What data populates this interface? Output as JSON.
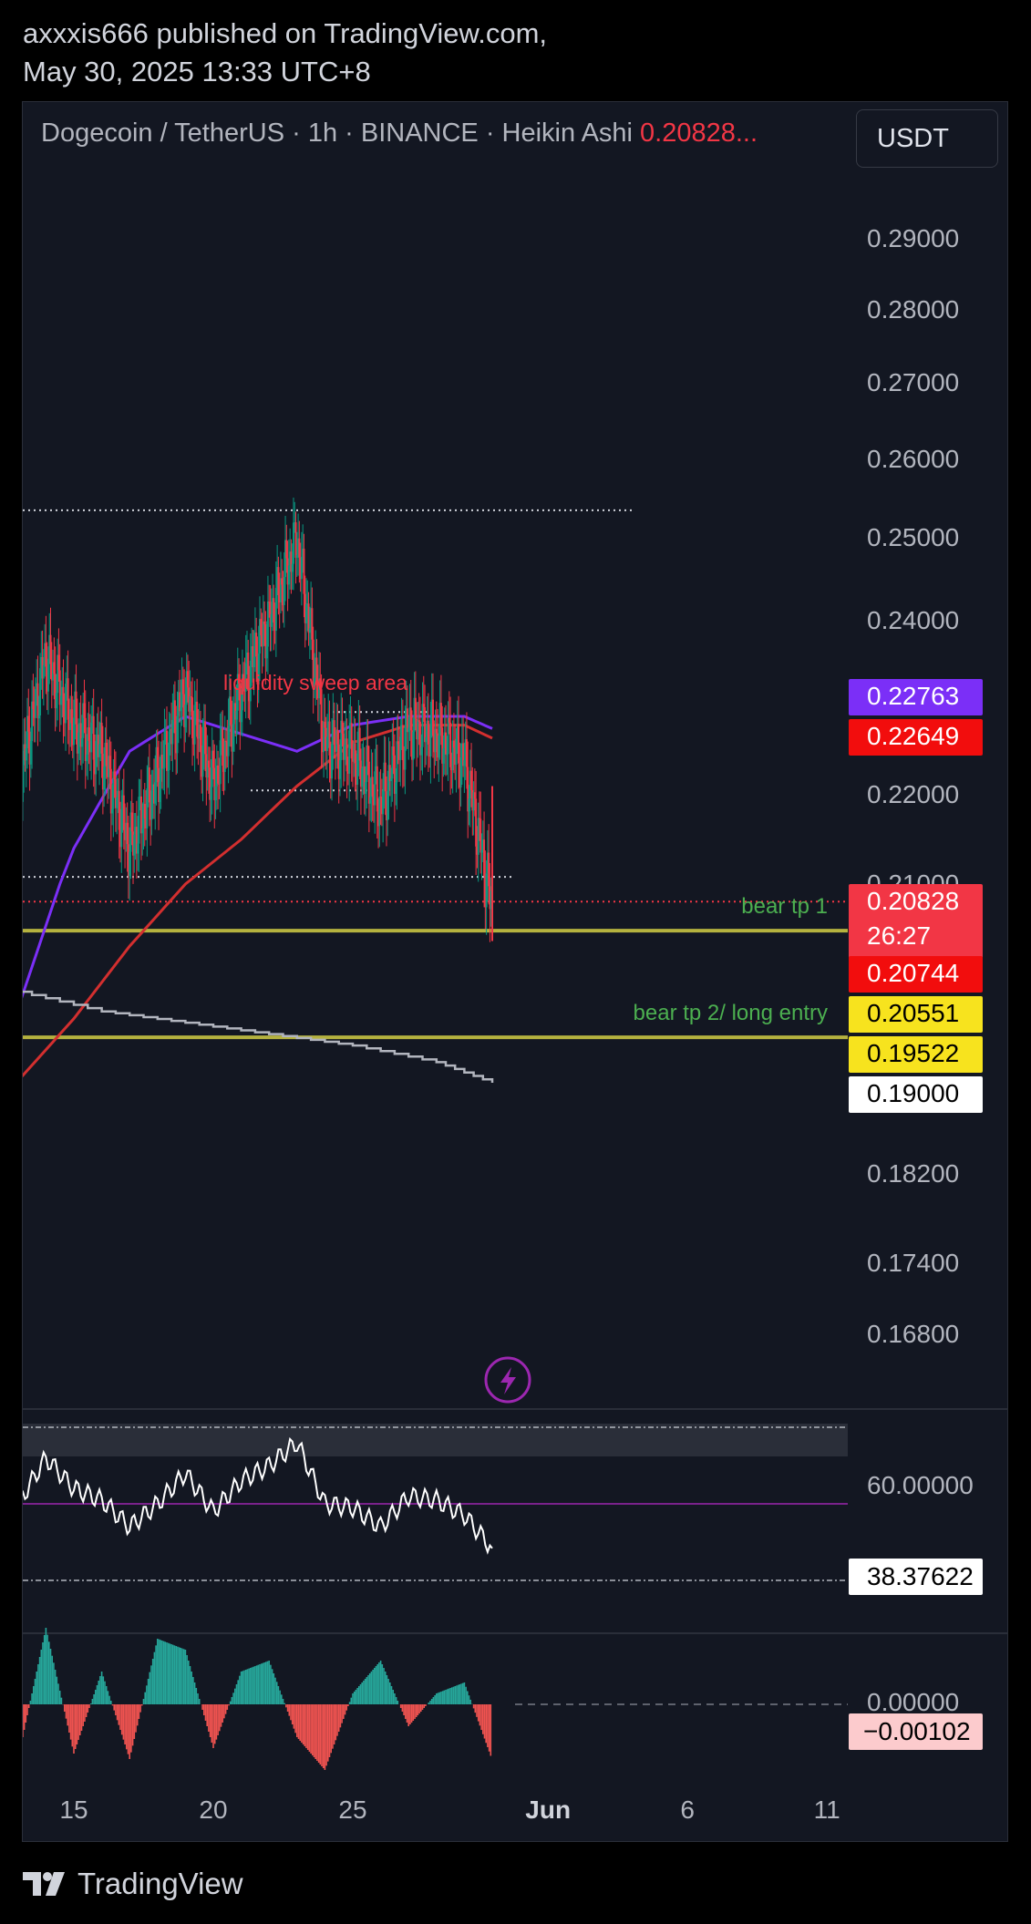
{
  "header": {
    "line1": "axxxis666 published on TradingView.com,",
    "line2": "May 30, 2025 13:33 UTC+8"
  },
  "symbol_line": {
    "text": "Dogecoin / TetherUS · 1h · BINANCE · Heikin Ashi",
    "price": "0.20828..."
  },
  "currency_button": "USDT",
  "footer": {
    "brand": "TradingView"
  },
  "colors": {
    "background": "#131722",
    "bull": "#089981",
    "bear": "#f23645",
    "ma_purple": "#7b2ff7",
    "ma_red": "#d32f2f",
    "target_line": "#b5b23f",
    "annotation_red": "#f23645",
    "annotation_green": "#4caf50"
  },
  "chart_data": [
    {
      "type": "candlestick",
      "title": "Dogecoin / TetherUS · 1h · BINANCE · Heikin Ashi",
      "x_tick_labels": [
        "15",
        "20",
        "25",
        "Jun",
        "6",
        "11"
      ],
      "x_tick_dates": [
        "2025-05-15",
        "2025-05-20",
        "2025-05-25",
        "2025-06-01",
        "2025-06-06",
        "2025-06-11"
      ],
      "y_tick_labels": [
        "0.29000",
        "0.28000",
        "0.27000",
        "0.26000",
        "0.25000",
        "0.24000",
        "0.22000",
        "0.21000",
        "0.18200",
        "0.17400",
        "0.16800"
      ],
      "ylim": [
        0.162,
        0.298
      ],
      "series": [
        {
          "name": "Heikin Ashi close (approx.)",
          "x": [
            "2025-05-13",
            "2025-05-14",
            "2025-05-15",
            "2025-05-16",
            "2025-05-17",
            "2025-05-18",
            "2025-05-19",
            "2025-05-20",
            "2025-05-21",
            "2025-05-22",
            "2025-05-23",
            "2025-05-24",
            "2025-05-25",
            "2025-05-26",
            "2025-05-27",
            "2025-05-28",
            "2025-05-29",
            "2025-05-30"
          ],
          "values": [
            0.221,
            0.236,
            0.228,
            0.225,
            0.214,
            0.222,
            0.232,
            0.221,
            0.232,
            0.24,
            0.25,
            0.226,
            0.225,
            0.219,
            0.228,
            0.227,
            0.224,
            0.2074
          ]
        },
        {
          "name": "Purple moving average",
          "x": [
            "2025-05-13",
            "2025-05-15",
            "2025-05-17",
            "2025-05-19",
            "2025-05-21",
            "2025-05-23",
            "2025-05-25",
            "2025-05-27",
            "2025-05-29",
            "2025-05-30"
          ],
          "values": [
            0.198,
            0.214,
            0.225,
            0.229,
            0.227,
            0.225,
            0.228,
            0.229,
            0.229,
            0.2276
          ]
        },
        {
          "name": "Red moving average",
          "x": [
            "2025-05-13",
            "2025-05-15",
            "2025-05-17",
            "2025-05-19",
            "2025-05-21",
            "2025-05-23",
            "2025-05-25",
            "2025-05-27",
            "2025-05-29",
            "2025-05-30"
          ],
          "values": [
            0.191,
            0.197,
            0.204,
            0.21,
            0.215,
            0.221,
            0.226,
            0.228,
            0.228,
            0.2265
          ]
        },
        {
          "name": "Grey line",
          "x": [
            "2025-05-13",
            "2025-05-16",
            "2025-05-19",
            "2025-05-22",
            "2025-05-25",
            "2025-05-28",
            "2025-05-30"
          ],
          "values": [
            0.1996,
            0.1977,
            0.1966,
            0.1955,
            0.1944,
            0.1928,
            0.1908
          ]
        }
      ],
      "price_tags": [
        {
          "value": "0.22763",
          "bg": "#7b2ff7",
          "fg": "#ffffff"
        },
        {
          "value": "0.22649",
          "bg": "#f20d0d",
          "fg": "#ffffff"
        },
        {
          "value": "0.20828",
          "sub": "26:27",
          "bg": "#f23645",
          "fg": "#ffffff"
        },
        {
          "value": "0.20744",
          "bg": "#f20d0d",
          "fg": "#ffffff"
        },
        {
          "value": "0.20551",
          "bg": "#f7e31e",
          "fg": "#000000"
        },
        {
          "value": "0.19522",
          "bg": "#f7e31e",
          "fg": "#000000"
        },
        {
          "value": "0.19000",
          "bg": "#ffffff",
          "fg": "#000000"
        }
      ],
      "horizontal_levels": [
        {
          "price": 0.2055,
          "label": "bear tp 1",
          "style": "solid"
        },
        {
          "price": 0.1952,
          "label": "bear tp 2/ long entry",
          "style": "solid"
        },
        {
          "price": 0.2535,
          "style": "dotted"
        },
        {
          "price": 0.2295,
          "style": "dotted"
        },
        {
          "price": 0.2205,
          "style": "dotted"
        },
        {
          "price": 0.2108,
          "style": "dotted"
        },
        {
          "price": 0.2083,
          "style": "dotted-red"
        }
      ],
      "annotations": [
        "liquidity sweep area"
      ]
    },
    {
      "type": "line",
      "title": "",
      "y_tick_labels": [
        "60.00000"
      ],
      "last_value": "38.37622",
      "levels": [
        70,
        50,
        30
      ],
      "x": [
        "2025-05-13",
        "2025-05-14",
        "2025-05-15",
        "2025-05-16",
        "2025-05-17",
        "2025-05-18",
        "2025-05-19",
        "2025-05-20",
        "2025-05-21",
        "2025-05-22",
        "2025-05-23",
        "2025-05-24",
        "2025-05-25",
        "2025-05-26",
        "2025-05-27",
        "2025-05-28",
        "2025-05-29",
        "2025-05-30"
      ],
      "values": [
        50,
        62,
        54,
        51,
        44,
        50,
        58,
        48,
        56,
        60,
        66,
        50,
        49,
        44,
        52,
        51,
        47,
        38.4
      ]
    },
    {
      "type": "bar",
      "title": "",
      "y_tick_labels": [
        "0.00000"
      ],
      "last_value": "−0.00102",
      "x": [
        "2025-05-13",
        "2025-05-14",
        "2025-05-15",
        "2025-05-16",
        "2025-05-17",
        "2025-05-18",
        "2025-05-19",
        "2025-05-20",
        "2025-05-21",
        "2025-05-22",
        "2025-05-23",
        "2025-05-24",
        "2025-05-25",
        "2025-05-26",
        "2025-05-27",
        "2025-05-28",
        "2025-05-29",
        "2025-05-30"
      ],
      "values": [
        -0.001,
        0.0014,
        -0.0009,
        0.0006,
        -0.001,
        0.0012,
        0.001,
        -0.0008,
        0.0006,
        0.0008,
        -0.0006,
        -0.0012,
        0.0002,
        0.0008,
        -0.0004,
        0.0002,
        0.0004,
        -0.00102
      ]
    }
  ]
}
